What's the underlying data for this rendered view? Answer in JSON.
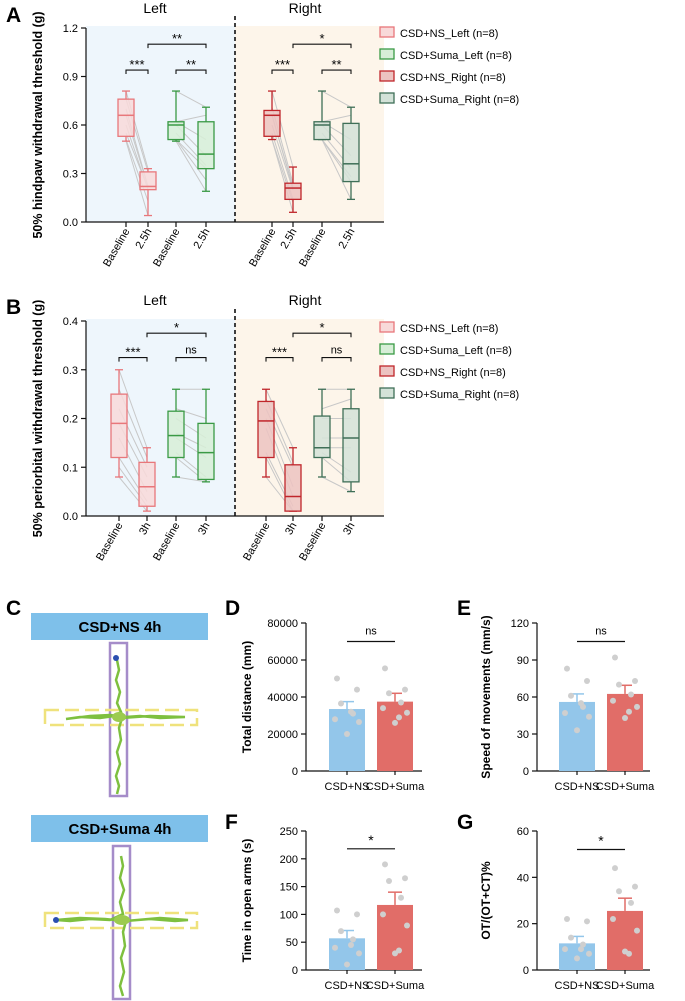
{
  "panel_labels": {
    "A": "A",
    "B": "B",
    "C": "C",
    "D": "D",
    "E": "E",
    "F": "F",
    "G": "G"
  },
  "group_labels": {
    "left": "Left",
    "right": "Right"
  },
  "colors": {
    "ns_left": "#e8777b",
    "ns_left_fill": "#f8d9d9",
    "suma_left": "#3a9a45",
    "suma_left_fill": "#d7eed7",
    "ns_right": "#c0262b",
    "ns_right_fill": "#ecc3c1",
    "suma_right": "#3f6f57",
    "suma_right_fill": "#d3e2d8",
    "left_bg": "#eef6fc",
    "right_bg": "#fdf5ea",
    "bar_ns": "#93c6ea",
    "bar_suma": "#e16d68",
    "dot": "#cfcfcf"
  },
  "legend": [
    {
      "label": "CSD+NS_Left (n=8)",
      "key": "ns_left"
    },
    {
      "label": "CSD+Suma_Left (n=8)",
      "key": "suma_left"
    },
    {
      "label": "CSD+NS_Right (n=8)",
      "key": "ns_right"
    },
    {
      "label": "CSD+Suma_Right (n=8)",
      "key": "suma_right"
    }
  ],
  "maze": {
    "ns_title": "CSD+NS 4h",
    "suma_title": "CSD+Suma 4h"
  },
  "chart_data": [
    {
      "id": "A",
      "type": "box",
      "ylabel": "50% hindpaw withdrawal threshold (g)",
      "ylim": [
        0,
        1.2
      ],
      "ticks": [
        0.0,
        0.3,
        0.6,
        0.9,
        1.2
      ],
      "tick_labels": [
        "0.0",
        "0.3",
        "0.6",
        "0.9",
        "1.2"
      ],
      "categories": [
        "Baseline",
        "2.5h",
        "Baseline",
        "2.5h",
        "Baseline",
        "2.5h",
        "Baseline",
        "2.5h"
      ],
      "boxes": [
        {
          "key": "ns_left",
          "min": 0.5,
          "q1": 0.53,
          "median": 0.66,
          "q3": 0.76,
          "max": 0.81
        },
        {
          "key": "ns_left",
          "min": 0.04,
          "q1": 0.2,
          "median": 0.22,
          "q3": 0.31,
          "max": 0.33
        },
        {
          "key": "suma_left",
          "min": 0.5,
          "q1": 0.51,
          "median": 0.6,
          "q3": 0.62,
          "max": 0.81
        },
        {
          "key": "suma_left",
          "min": 0.19,
          "q1": 0.33,
          "median": 0.42,
          "q3": 0.62,
          "max": 0.71
        },
        {
          "key": "ns_right",
          "min": 0.51,
          "q1": 0.53,
          "median": 0.66,
          "q3": 0.69,
          "max": 0.81
        },
        {
          "key": "ns_right",
          "min": 0.06,
          "q1": 0.14,
          "median": 0.21,
          "q3": 0.24,
          "max": 0.34
        },
        {
          "key": "suma_right",
          "min": 0.51,
          "q1": 0.51,
          "median": 0.6,
          "q3": 0.62,
          "max": 0.81
        },
        {
          "key": "suma_right",
          "min": 0.14,
          "q1": 0.25,
          "median": 0.36,
          "q3": 0.61,
          "max": 0.71
        }
      ],
      "paired_lines": [
        [
          [
            0.81,
            0.33
          ],
          [
            0.76,
            0.31
          ],
          [
            0.7,
            0.22
          ],
          [
            0.66,
            0.22
          ],
          [
            0.6,
            0.2
          ],
          [
            0.55,
            0.21
          ],
          [
            0.51,
            0.13
          ],
          [
            0.5,
            0.04
          ]
        ],
        [
          [
            0.81,
            0.71
          ],
          [
            0.62,
            0.66
          ],
          [
            0.62,
            0.51
          ],
          [
            0.6,
            0.41
          ],
          [
            0.55,
            0.35
          ],
          [
            0.51,
            0.33
          ],
          [
            0.51,
            0.26
          ],
          [
            0.5,
            0.19
          ]
        ],
        [
          [
            0.81,
            0.34
          ],
          [
            0.71,
            0.24
          ],
          [
            0.66,
            0.22
          ],
          [
            0.66,
            0.21
          ],
          [
            0.6,
            0.2
          ],
          [
            0.55,
            0.14
          ],
          [
            0.51,
            0.12
          ],
          [
            0.51,
            0.06
          ]
        ],
        [
          [
            0.81,
            0.71
          ],
          [
            0.62,
            0.66
          ],
          [
            0.62,
            0.51
          ],
          [
            0.6,
            0.41
          ],
          [
            0.55,
            0.33
          ],
          [
            0.51,
            0.28
          ],
          [
            0.51,
            0.25
          ],
          [
            0.51,
            0.14
          ]
        ]
      ],
      "significance": [
        {
          "from": 0,
          "to": 1,
          "y": 0.94,
          "label": "***"
        },
        {
          "from": 2,
          "to": 3,
          "y": 0.94,
          "label": "**"
        },
        {
          "from": 1,
          "to": 3,
          "y": 1.1,
          "label": "**"
        },
        {
          "from": 4,
          "to": 5,
          "y": 0.94,
          "label": "***"
        },
        {
          "from": 6,
          "to": 7,
          "y": 0.94,
          "label": "**"
        },
        {
          "from": 5,
          "to": 7,
          "y": 1.1,
          "label": "*"
        }
      ]
    },
    {
      "id": "B",
      "type": "box",
      "ylabel": "50% periorbital withdrawal threshold (g)",
      "ylim": [
        0,
        0.4
      ],
      "ticks": [
        0.0,
        0.1,
        0.2,
        0.3,
        0.4
      ],
      "tick_labels": [
        "0.0",
        "0.1",
        "0.2",
        "0.3",
        "0.4"
      ],
      "categories": [
        "Baseline",
        "3h",
        "Baseline",
        "3h",
        "Baseline",
        "3h",
        "Baseline",
        "3h"
      ],
      "boxes": [
        {
          "key": "ns_left",
          "min": 0.08,
          "q1": 0.12,
          "median": 0.19,
          "q3": 0.25,
          "max": 0.3
        },
        {
          "key": "ns_left",
          "min": 0.01,
          "q1": 0.02,
          "median": 0.06,
          "q3": 0.11,
          "max": 0.14
        },
        {
          "key": "suma_left",
          "min": 0.08,
          "q1": 0.12,
          "median": 0.165,
          "q3": 0.215,
          "max": 0.26
        },
        {
          "key": "suma_left",
          "min": 0.07,
          "q1": 0.075,
          "median": 0.13,
          "q3": 0.19,
          "max": 0.26
        },
        {
          "key": "ns_right",
          "min": 0.08,
          "q1": 0.12,
          "median": 0.195,
          "q3": 0.235,
          "max": 0.26
        },
        {
          "key": "ns_right",
          "min": 0.01,
          "q1": 0.01,
          "median": 0.04,
          "q3": 0.105,
          "max": 0.14
        },
        {
          "key": "suma_right",
          "min": 0.08,
          "q1": 0.12,
          "median": 0.14,
          "q3": 0.205,
          "max": 0.26
        },
        {
          "key": "suma_right",
          "min": 0.05,
          "q1": 0.07,
          "median": 0.16,
          "q3": 0.22,
          "max": 0.26
        }
      ],
      "paired_lines": [
        [
          [
            0.3,
            0.14
          ],
          [
            0.26,
            0.12
          ],
          [
            0.22,
            0.1
          ],
          [
            0.19,
            0.08
          ],
          [
            0.16,
            0.05
          ],
          [
            0.12,
            0.03
          ],
          [
            0.1,
            0.02
          ],
          [
            0.08,
            0.01
          ]
        ],
        [
          [
            0.26,
            0.26
          ],
          [
            0.22,
            0.2
          ],
          [
            0.2,
            0.16
          ],
          [
            0.17,
            0.14
          ],
          [
            0.16,
            0.12
          ],
          [
            0.13,
            0.08
          ],
          [
            0.12,
            0.07
          ],
          [
            0.08,
            0.07
          ]
        ],
        [
          [
            0.26,
            0.14
          ],
          [
            0.24,
            0.11
          ],
          [
            0.22,
            0.1
          ],
          [
            0.2,
            0.06
          ],
          [
            0.18,
            0.04
          ],
          [
            0.13,
            0.02
          ],
          [
            0.12,
            0.01
          ],
          [
            0.08,
            0.01
          ]
        ],
        [
          [
            0.26,
            0.26
          ],
          [
            0.22,
            0.24
          ],
          [
            0.2,
            0.2
          ],
          [
            0.16,
            0.16
          ],
          [
            0.14,
            0.14
          ],
          [
            0.13,
            0.09
          ],
          [
            0.12,
            0.07
          ],
          [
            0.08,
            0.05
          ]
        ]
      ],
      "significance": [
        {
          "from": 0,
          "to": 1,
          "y": 0.325,
          "label": "***"
        },
        {
          "from": 2,
          "to": 3,
          "y": 0.325,
          "label": "ns"
        },
        {
          "from": 1,
          "to": 3,
          "y": 0.375,
          "label": "*"
        },
        {
          "from": 4,
          "to": 5,
          "y": 0.325,
          "label": "***"
        },
        {
          "from": 6,
          "to": 7,
          "y": 0.325,
          "label": "ns"
        },
        {
          "from": 5,
          "to": 7,
          "y": 0.375,
          "label": "*"
        }
      ]
    },
    {
      "id": "D",
      "type": "bar",
      "ylabel": "Total distance (mm)",
      "categories": [
        "CSD+NS",
        "CSD+Suma"
      ],
      "values": [
        33500,
        37500
      ],
      "errors": [
        4000,
        4500
      ],
      "ylim": [
        0,
        80000
      ],
      "ticks": [
        0,
        20000,
        40000,
        60000,
        80000
      ],
      "tick_labels": [
        "0",
        "20000",
        "40000",
        "60000",
        "80000"
      ],
      "points": [
        [
          50000,
          44000,
          36500,
          31000,
          28000,
          26500,
          20000,
          32000
        ],
        [
          55500,
          44000,
          42000,
          37000,
          34000,
          31500,
          26000,
          29000
        ]
      ],
      "significance": {
        "label": "ns",
        "y": 70000
      }
    },
    {
      "id": "E",
      "type": "bar",
      "ylabel": "Speed of movements (mm/s)",
      "categories": [
        "CSD+NS",
        "CSD+Suma"
      ],
      "values": [
        56,
        62.5
      ],
      "errors": [
        6.5,
        7
      ],
      "ylim": [
        0,
        120
      ],
      "ticks": [
        0,
        30,
        60,
        90,
        120
      ],
      "tick_labels": [
        "0",
        "30",
        "60",
        "90",
        "120"
      ],
      "points": [
        [
          83,
          73,
          61,
          52,
          47,
          44,
          33,
          55
        ],
        [
          92,
          73,
          70,
          62,
          57,
          52,
          43,
          48
        ]
      ],
      "significance": {
        "label": "ns",
        "y": 105
      }
    },
    {
      "id": "F",
      "type": "bar",
      "ylabel": "Time in open arms (s)",
      "categories": [
        "CSD+NS",
        "CSD+Suma"
      ],
      "values": [
        57,
        117
      ],
      "errors": [
        14,
        23
      ],
      "ylim": [
        0,
        250
      ],
      "ticks": [
        0,
        50,
        100,
        150,
        200,
        250
      ],
      "tick_labels": [
        "0",
        "50",
        "100",
        "150",
        "200",
        "250"
      ],
      "points": [
        [
          107,
          100,
          70,
          55,
          40,
          30,
          10,
          45
        ],
        [
          190,
          165,
          160,
          130,
          100,
          80,
          30,
          35
        ]
      ],
      "significance": {
        "label": "*",
        "y": 218
      }
    },
    {
      "id": "G",
      "type": "bar",
      "ylabel": "OT/(OT+CT)%",
      "categories": [
        "CSD+NS",
        "CSD+Suma"
      ],
      "values": [
        11.5,
        25.5
      ],
      "errors": [
        3,
        5.5
      ],
      "ylim": [
        0,
        60
      ],
      "ticks": [
        0,
        20,
        40,
        60
      ],
      "tick_labels": [
        "0",
        "20",
        "40",
        "60"
      ],
      "points": [
        [
          22,
          21,
          14,
          11,
          9,
          7,
          5,
          9
        ],
        [
          44,
          36,
          34,
          29,
          22,
          17,
          8,
          7
        ]
      ],
      "significance": {
        "label": "*",
        "y": 52
      }
    }
  ]
}
